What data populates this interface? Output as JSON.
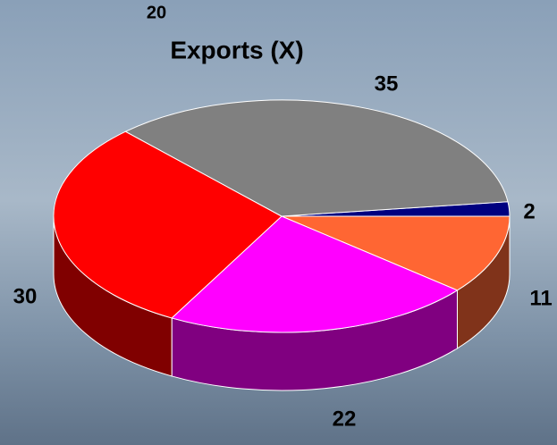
{
  "chart_data": {
    "type": "pie3d",
    "title": "Exports (X)",
    "annotation": "20",
    "categories": [
      null,
      null,
      null,
      null,
      null
    ],
    "values": [
      2,
      11,
      22,
      30,
      35
    ],
    "colors": [
      "#000080",
      "#ff6633",
      "#ff00ff",
      "#ff0000",
      "#808080"
    ],
    "side_colors": [
      "#000040",
      "#80331a",
      "#800080",
      "#800000",
      "#404040"
    ]
  }
}
